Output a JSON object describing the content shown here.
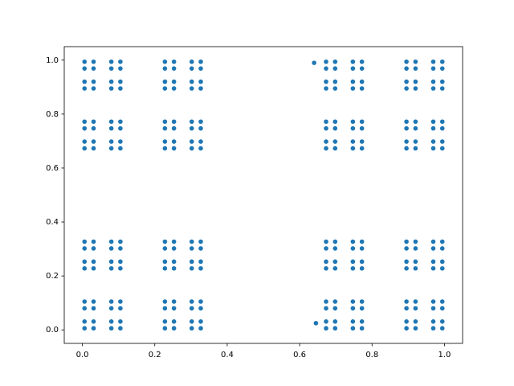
{
  "chart_data": {
    "type": "scatter",
    "color": "#1f77b4",
    "xlim": [
      -0.05,
      1.05
    ],
    "ylim": [
      -0.05,
      1.05
    ],
    "xticks": [
      {
        "value": 0,
        "label": "0.0"
      },
      {
        "value": 0.2,
        "label": "0.2"
      },
      {
        "value": 0.4,
        "label": "0.4"
      },
      {
        "value": 0.6,
        "label": "0.6"
      },
      {
        "value": 0.8,
        "label": "0.8"
      },
      {
        "value": 1,
        "label": "1.0"
      }
    ],
    "yticks": [
      {
        "value": 0,
        "label": "0.0"
      },
      {
        "value": 0.2,
        "label": "0.2"
      },
      {
        "value": 0.4,
        "label": "0.4"
      },
      {
        "value": 0.6,
        "label": "0.6"
      },
      {
        "value": 0.8,
        "label": "0.8"
      },
      {
        "value": 1,
        "label": "1.0"
      }
    ],
    "x": [
      0.006,
      0.031,
      0.08,
      0.105,
      0.228,
      0.253,
      0.302,
      0.327,
      0.673,
      0.698,
      0.747,
      0.772,
      0.895,
      0.92,
      0.969,
      0.994,
      0.006,
      0.031,
      0.08,
      0.105,
      0.228,
      0.253,
      0.302,
      0.327,
      0.673,
      0.698,
      0.747,
      0.772,
      0.895,
      0.92,
      0.969,
      0.994,
      0.006,
      0.031,
      0.08,
      0.105,
      0.228,
      0.253,
      0.302,
      0.327,
      0.673,
      0.698,
      0.747,
      0.772,
      0.895,
      0.92,
      0.969,
      0.994,
      0.006,
      0.031,
      0.08,
      0.105,
      0.228,
      0.253,
      0.302,
      0.327,
      0.673,
      0.698,
      0.747,
      0.772,
      0.895,
      0.92,
      0.969,
      0.994,
      0.006,
      0.031,
      0.08,
      0.105,
      0.228,
      0.253,
      0.302,
      0.327,
      0.673,
      0.698,
      0.747,
      0.772,
      0.895,
      0.92,
      0.969,
      0.994,
      0.006,
      0.031,
      0.08,
      0.105,
      0.228,
      0.253,
      0.302,
      0.327,
      0.673,
      0.698,
      0.747,
      0.772,
      0.895,
      0.92,
      0.969,
      0.994,
      0.006,
      0.031,
      0.08,
      0.105,
      0.228,
      0.253,
      0.302,
      0.327,
      0.673,
      0.698,
      0.747,
      0.772,
      0.895,
      0.92,
      0.969,
      0.994,
      0.006,
      0.031,
      0.08,
      0.105,
      0.228,
      0.253,
      0.302,
      0.327,
      0.673,
      0.698,
      0.747,
      0.772,
      0.895,
      0.92,
      0.969,
      0.994,
      0.006,
      0.031,
      0.08,
      0.105,
      0.228,
      0.253,
      0.302,
      0.327,
      0.673,
      0.698,
      0.747,
      0.772,
      0.895,
      0.92,
      0.969,
      0.994,
      0.006,
      0.031,
      0.08,
      0.105,
      0.228,
      0.253,
      0.302,
      0.327,
      0.673,
      0.698,
      0.747,
      0.772,
      0.895,
      0.92,
      0.969,
      0.994,
      0.006,
      0.031,
      0.08,
      0.105,
      0.228,
      0.253,
      0.302,
      0.327,
      0.673,
      0.698,
      0.747,
      0.772,
      0.895,
      0.92,
      0.969,
      0.994,
      0.006,
      0.031,
      0.08,
      0.105,
      0.228,
      0.253,
      0.302,
      0.327,
      0.673,
      0.698,
      0.747,
      0.772,
      0.895,
      0.92,
      0.969,
      0.994,
      0.006,
      0.031,
      0.08,
      0.105,
      0.228,
      0.253,
      0.302,
      0.327,
      0.673,
      0.698,
      0.747,
      0.772,
      0.895,
      0.92,
      0.969,
      0.994,
      0.006,
      0.031,
      0.08,
      0.105,
      0.228,
      0.253,
      0.302,
      0.327,
      0.673,
      0.698,
      0.747,
      0.772,
      0.895,
      0.92,
      0.969,
      0.994,
      0.006,
      0.031,
      0.08,
      0.105,
      0.228,
      0.253,
      0.302,
      0.327,
      0.673,
      0.698,
      0.747,
      0.772,
      0.895,
      0.92,
      0.969,
      0.994,
      0.006,
      0.031,
      0.08,
      0.105,
      0.228,
      0.253,
      0.302,
      0.327,
      0.673,
      0.698,
      0.747,
      0.772,
      0.895,
      0.92,
      0.969,
      0.994,
      0.64,
      0.645
    ],
    "y": [
      0.006,
      0.006,
      0.006,
      0.006,
      0.006,
      0.006,
      0.006,
      0.006,
      0.006,
      0.006,
      0.006,
      0.006,
      0.006,
      0.006,
      0.006,
      0.006,
      0.031,
      0.031,
      0.031,
      0.031,
      0.031,
      0.031,
      0.031,
      0.031,
      0.031,
      0.031,
      0.031,
      0.031,
      0.031,
      0.031,
      0.031,
      0.031,
      0.08,
      0.08,
      0.08,
      0.08,
      0.08,
      0.08,
      0.08,
      0.08,
      0.08,
      0.08,
      0.08,
      0.08,
      0.08,
      0.08,
      0.08,
      0.08,
      0.105,
      0.105,
      0.105,
      0.105,
      0.105,
      0.105,
      0.105,
      0.105,
      0.105,
      0.105,
      0.105,
      0.105,
      0.105,
      0.105,
      0.105,
      0.105,
      0.228,
      0.228,
      0.228,
      0.228,
      0.228,
      0.228,
      0.228,
      0.228,
      0.228,
      0.228,
      0.228,
      0.228,
      0.228,
      0.228,
      0.228,
      0.228,
      0.253,
      0.253,
      0.253,
      0.253,
      0.253,
      0.253,
      0.253,
      0.253,
      0.253,
      0.253,
      0.253,
      0.253,
      0.253,
      0.253,
      0.253,
      0.253,
      0.302,
      0.302,
      0.302,
      0.302,
      0.302,
      0.302,
      0.302,
      0.302,
      0.302,
      0.302,
      0.302,
      0.302,
      0.302,
      0.302,
      0.302,
      0.302,
      0.327,
      0.327,
      0.327,
      0.327,
      0.327,
      0.327,
      0.327,
      0.327,
      0.327,
      0.327,
      0.327,
      0.327,
      0.327,
      0.327,
      0.327,
      0.327,
      0.673,
      0.673,
      0.673,
      0.673,
      0.673,
      0.673,
      0.673,
      0.673,
      0.673,
      0.673,
      0.673,
      0.673,
      0.673,
      0.673,
      0.673,
      0.673,
      0.698,
      0.698,
      0.698,
      0.698,
      0.698,
      0.698,
      0.698,
      0.698,
      0.698,
      0.698,
      0.698,
      0.698,
      0.698,
      0.698,
      0.698,
      0.698,
      0.747,
      0.747,
      0.747,
      0.747,
      0.747,
      0.747,
      0.747,
      0.747,
      0.747,
      0.747,
      0.747,
      0.747,
      0.747,
      0.747,
      0.747,
      0.747,
      0.772,
      0.772,
      0.772,
      0.772,
      0.772,
      0.772,
      0.772,
      0.772,
      0.772,
      0.772,
      0.772,
      0.772,
      0.772,
      0.772,
      0.772,
      0.772,
      0.895,
      0.895,
      0.895,
      0.895,
      0.895,
      0.895,
      0.895,
      0.895,
      0.895,
      0.895,
      0.895,
      0.895,
      0.895,
      0.895,
      0.895,
      0.895,
      0.92,
      0.92,
      0.92,
      0.92,
      0.92,
      0.92,
      0.92,
      0.92,
      0.92,
      0.92,
      0.92,
      0.92,
      0.92,
      0.92,
      0.92,
      0.92,
      0.969,
      0.969,
      0.969,
      0.969,
      0.969,
      0.969,
      0.969,
      0.969,
      0.969,
      0.969,
      0.969,
      0.969,
      0.969,
      0.969,
      0.969,
      0.969,
      0.994,
      0.994,
      0.994,
      0.994,
      0.994,
      0.994,
      0.994,
      0.994,
      0.994,
      0.994,
      0.994,
      0.994,
      0.994,
      0.994,
      0.994,
      0.994,
      0.99,
      0.025
    ]
  }
}
